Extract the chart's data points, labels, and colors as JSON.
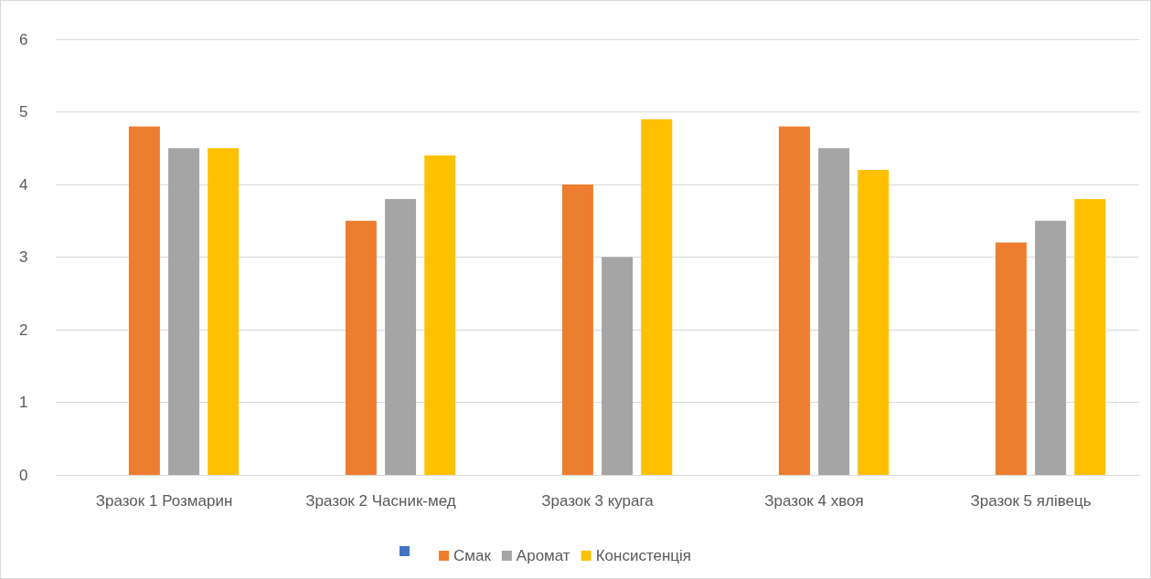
{
  "chart_data": {
    "type": "bar",
    "categories": [
      "Зразок 1 Розмарин",
      "Зразок 2 Часник-мед",
      "Зразок 3 курага",
      "Зразок 4 хвоя",
      "Зразок 5 ялівець"
    ],
    "series": [
      {
        "color": "#4472c4",
        "values": [
          null,
          null,
          null,
          null,
          null
        ]
      },
      {
        "name": "Смак",
        "color": "#ed7d31",
        "values": [
          4.8,
          3.5,
          4.0,
          4.8,
          3.2
        ]
      },
      {
        "name": "Аромат",
        "color": "#a5a5a5",
        "values": [
          4.5,
          3.8,
          3.0,
          4.5,
          3.5
        ]
      },
      {
        "name": "Консистенція",
        "color": "#ffc000",
        "values": [
          4.5,
          4.4,
          4.9,
          4.2,
          3.8
        ]
      }
    ],
    "ylim": [
      0,
      6
    ],
    "yticks": [
      0,
      1,
      2,
      3,
      4,
      5,
      6
    ],
    "grid": "y",
    "legend": "bottom"
  }
}
